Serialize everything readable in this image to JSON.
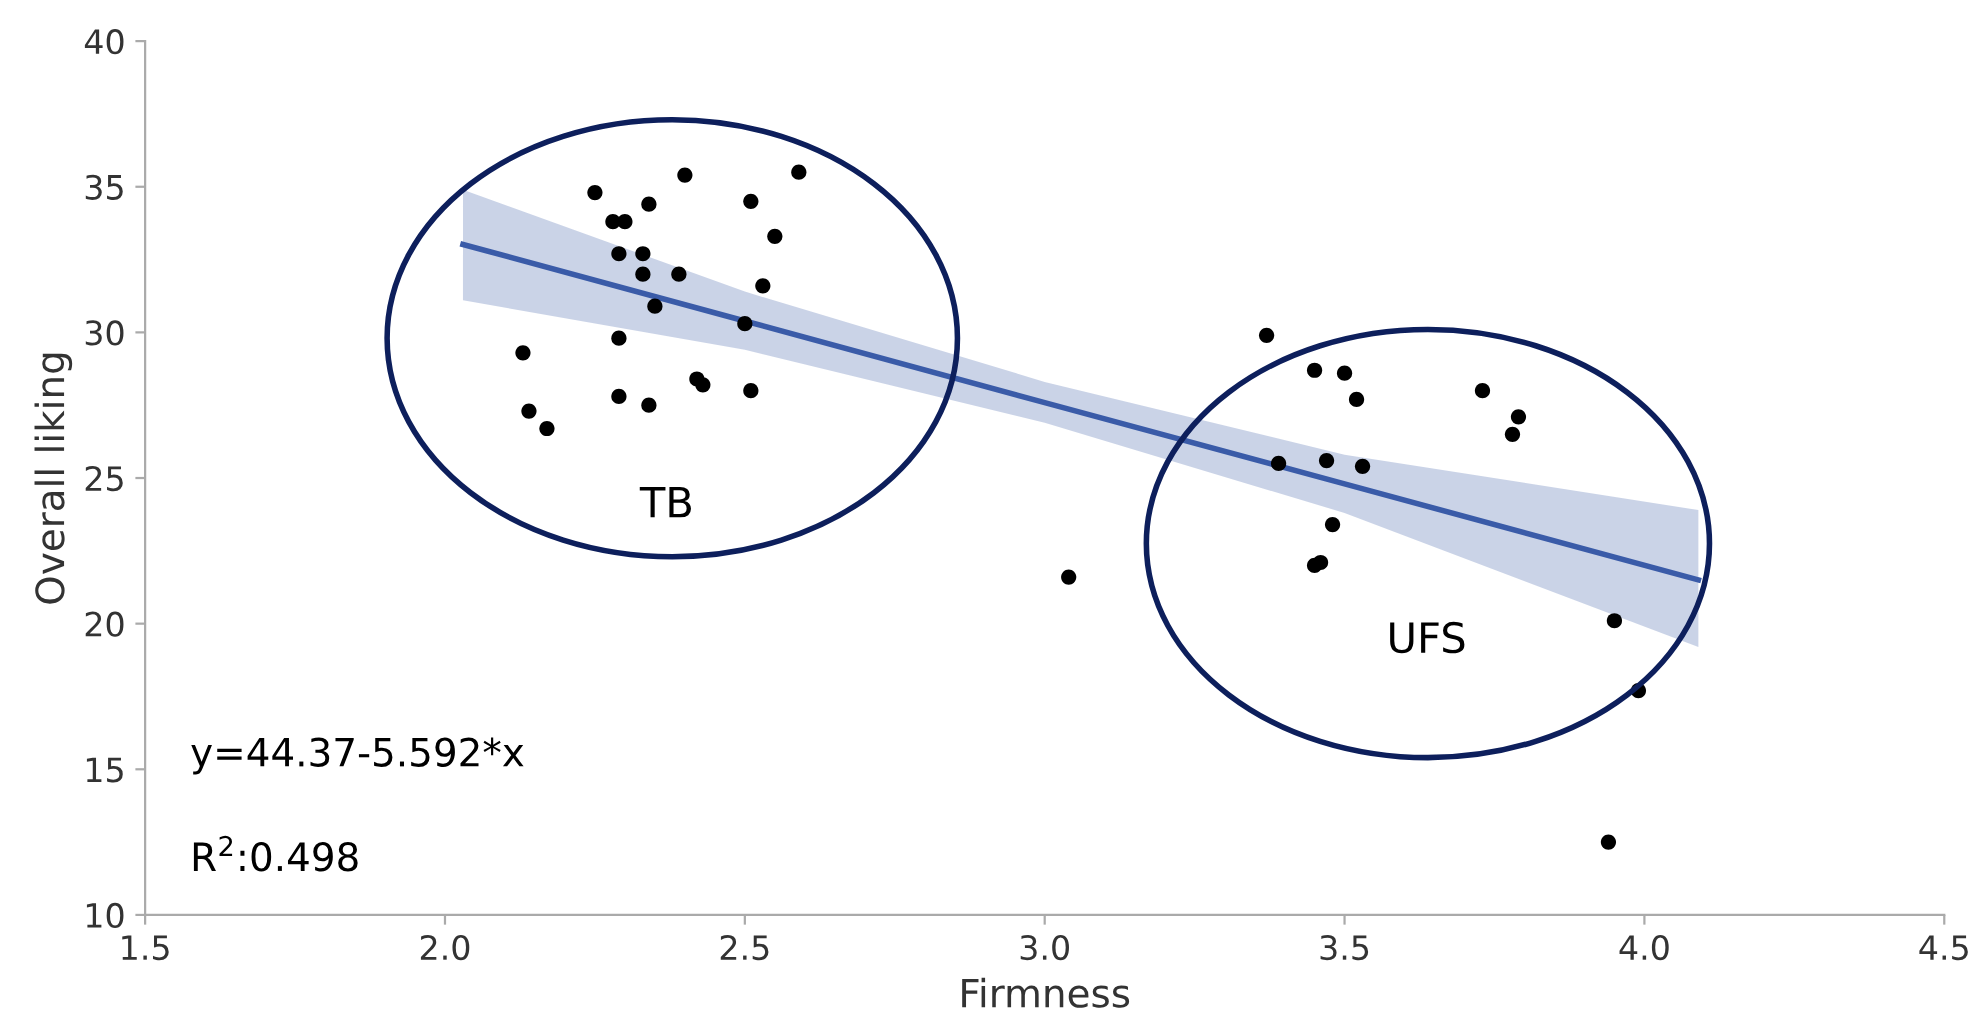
{
  "chart_data": {
    "type": "scatter",
    "xlabel": "Firmness",
    "ylabel": "Overall liking",
    "xlim": [
      1.5,
      4.5
    ],
    "xticks": [
      1.5,
      {
        "value": 2,
        "label": "2.0"
      },
      2.5,
      {
        "value": 3,
        "label": "3.0"
      },
      3.5,
      {
        "value": 4,
        "label": "4.0"
      },
      4.5
    ],
    "ylim": [
      10,
      40
    ],
    "yticks": [
      10,
      15,
      20,
      25,
      30,
      35,
      40
    ],
    "grid": false,
    "annotations": [
      "TB",
      "UFS",
      "y=44.37-5.592*x",
      "R$^{2}$:0.498"
    ],
    "series": [
      {
        "marker": "circle",
        "color": "#000000",
        "x": [
          2.25,
          2.4,
          2.59,
          2.28,
          2.3,
          2.34,
          2.51,
          2.55,
          2.29,
          2.33,
          2.33,
          2.39,
          2.53,
          2.35,
          2.5,
          2.29,
          2.13,
          2.42,
          2.43,
          2.51,
          2.29,
          2.34,
          2.14,
          2.17,
          3.04,
          3.37,
          3.45,
          3.5,
          3.52,
          3.73,
          3.79,
          3.78,
          3.39,
          3.47,
          3.53,
          3.48,
          3.45,
          3.46,
          3.95,
          3.99,
          3.94
        ],
        "values": [
          34.8,
          35.4,
          35.5,
          33.8,
          33.8,
          34.4,
          34.5,
          33.3,
          32.7,
          32.7,
          32.0,
          32.0,
          31.6,
          30.9,
          30.3,
          29.8,
          29.3,
          28.4,
          28.2,
          28.0,
          27.8,
          27.5,
          27.3,
          26.7,
          21.6,
          29.9,
          28.7,
          28.6,
          27.7,
          28.0,
          27.1,
          26.5,
          25.5,
          25.6,
          25.4,
          23.4,
          22.0,
          22.1,
          20.1,
          17.7,
          12.5
        ]
      },
      {
        "type": "line",
        "marker": "none",
        "color": "#3a5ba8",
        "x": [
          2.03,
          2.5,
          3.0,
          3.5,
          4.09
        ],
        "values": [
          33.02,
          30.39,
          27.59,
          24.8,
          21.5
        ],
        "lower": [
          31.1,
          29.4,
          26.9,
          23.8,
          19.2
        ],
        "upper": [
          34.9,
          31.4,
          28.3,
          25.8,
          23.9
        ]
      }
    ]
  }
}
